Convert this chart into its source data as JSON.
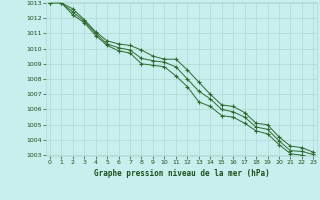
{
  "xlabel": "Graphe pression niveau de la mer (hPa)",
  "x": [
    0,
    1,
    2,
    3,
    4,
    5,
    6,
    7,
    8,
    9,
    10,
    11,
    12,
    13,
    14,
    15,
    16,
    17,
    18,
    19,
    20,
    21,
    22,
    23
  ],
  "line1": [
    1013.0,
    1013.0,
    1012.6,
    1011.9,
    1011.1,
    1010.5,
    1010.3,
    1010.2,
    1009.9,
    1009.5,
    1009.3,
    1009.3,
    1008.6,
    1007.8,
    1007.0,
    1006.3,
    1006.2,
    1005.8,
    1005.1,
    1005.0,
    1004.2,
    1003.6,
    1003.5,
    1003.2
  ],
  "line2": [
    1013.0,
    1013.0,
    1012.4,
    1011.8,
    1011.0,
    1010.3,
    1010.05,
    1009.9,
    1009.35,
    1009.2,
    1009.1,
    1008.8,
    1008.0,
    1007.2,
    1006.7,
    1006.0,
    1005.85,
    1005.5,
    1004.85,
    1004.7,
    1003.95,
    1003.3,
    1003.25,
    1003.05
  ],
  "line3": [
    1013.0,
    1013.0,
    1012.2,
    1011.7,
    1010.85,
    1010.2,
    1009.85,
    1009.7,
    1009.0,
    1008.9,
    1008.8,
    1008.2,
    1007.5,
    1006.5,
    1006.2,
    1005.6,
    1005.5,
    1005.1,
    1004.6,
    1004.4,
    1003.7,
    1003.1,
    1003.0,
    1002.8
  ],
  "ylim": [
    1003,
    1013
  ],
  "yticks": [
    1003,
    1004,
    1005,
    1006,
    1007,
    1008,
    1009,
    1010,
    1011,
    1012,
    1013
  ],
  "xlim": [
    0,
    23
  ],
  "xticks": [
    0,
    1,
    2,
    3,
    4,
    5,
    6,
    7,
    8,
    9,
    10,
    11,
    12,
    13,
    14,
    15,
    16,
    17,
    18,
    19,
    20,
    21,
    22,
    23
  ],
  "line_color": "#2d6a2d",
  "bg_color": "#c8eeee",
  "grid_color": "#b0d8d0",
  "marker": "+",
  "marker_size": 3,
  "label_color": "#1a501a",
  "tick_label_color": "#1a501a"
}
